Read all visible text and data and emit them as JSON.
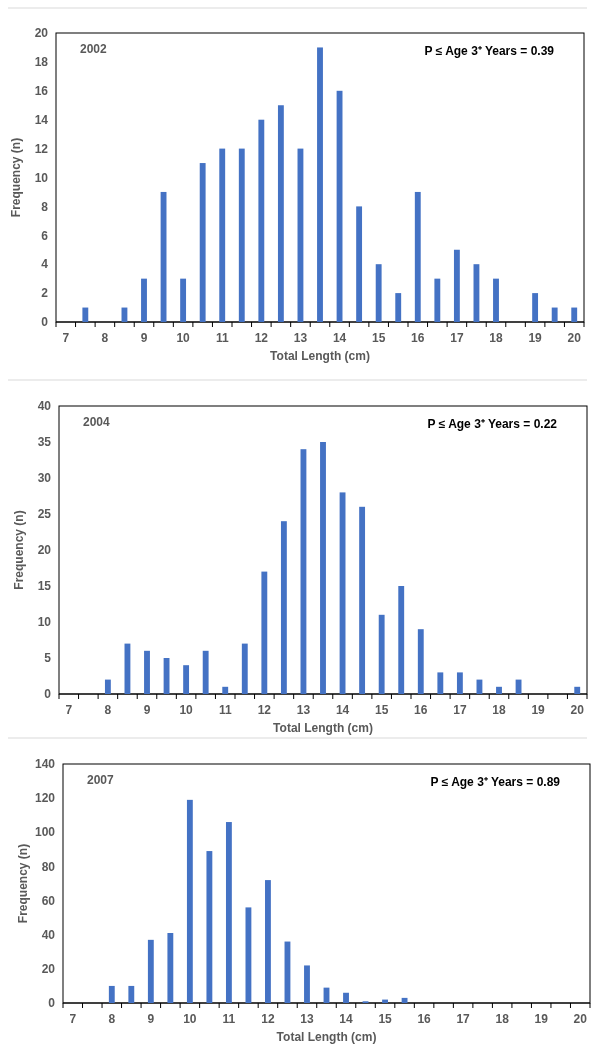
{
  "chart_data": [
    {
      "type": "bar",
      "categories": [
        "7",
        null,
        "8",
        null,
        "9",
        null,
        "10",
        null,
        "11",
        null,
        "12",
        null,
        "13",
        null,
        "14",
        null,
        "15",
        null,
        "16",
        null,
        "17",
        null,
        "18",
        null,
        "19",
        null,
        "20"
      ],
      "values": [
        0,
        1,
        0,
        1,
        3,
        9,
        3,
        11,
        12,
        12,
        14,
        15,
        12,
        19,
        16,
        8,
        4,
        2,
        9,
        3,
        5,
        4,
        3,
        0,
        2,
        1,
        1
      ],
      "color": "#4472c4",
      "ylim": [
        0,
        20
      ],
      "yticks": [
        0,
        2,
        4,
        6,
        8,
        10,
        12,
        14,
        16,
        18,
        20
      ],
      "xlabel": "Total Length (cm)",
      "ylabel": "Frequency (n)",
      "annotations": [
        "2002",
        "P ≤ Age 3⁺ Years = 0.39"
      ]
    },
    {
      "type": "bar",
      "categories": [
        "7",
        null,
        "8",
        null,
        "9",
        null,
        "10",
        null,
        "11",
        null,
        "12",
        null,
        "13",
        null,
        "14",
        null,
        "15",
        null,
        "16",
        null,
        "17",
        null,
        "18",
        null,
        "19",
        null,
        "20"
      ],
      "values": [
        0,
        0,
        2,
        7,
        6,
        5,
        4,
        6,
        1,
        7,
        17,
        24,
        34,
        35,
        28,
        26,
        11,
        15,
        9,
        3,
        3,
        2,
        1,
        2,
        0,
        0,
        1
      ],
      "color": "#4472c4",
      "ylim": [
        0,
        40
      ],
      "yticks": [
        0,
        5,
        10,
        15,
        20,
        25,
        30,
        35,
        40
      ],
      "xlabel": "Total Length (cm)",
      "ylabel": "Frequency (n)",
      "annotations": [
        "2004",
        "P ≤ Age 3⁺ Years = 0.22"
      ]
    },
    {
      "type": "bar",
      "categories": [
        "7",
        null,
        "8",
        null,
        "9",
        null,
        "10",
        null,
        "11",
        null,
        "12",
        null,
        "13",
        null,
        "14",
        null,
        "15",
        null,
        "16",
        null,
        "17",
        null,
        "18",
        null,
        "19",
        null,
        "20"
      ],
      "values": [
        0,
        0,
        10,
        10,
        37,
        41,
        119,
        89,
        106,
        56,
        72,
        36,
        22,
        9,
        6,
        1,
        2,
        3,
        0,
        0,
        0,
        0,
        0,
        0,
        0,
        0,
        0
      ],
      "color": "#4472c4",
      "ylim": [
        0,
        140
      ],
      "yticks": [
        0,
        20,
        40,
        60,
        80,
        100,
        120,
        140
      ],
      "xlabel": "Total Length (cm)",
      "ylabel": "Frequency (n)",
      "annotations": [
        "2007",
        "P ≤ Age 3⁺ Years = 0.89"
      ]
    }
  ]
}
